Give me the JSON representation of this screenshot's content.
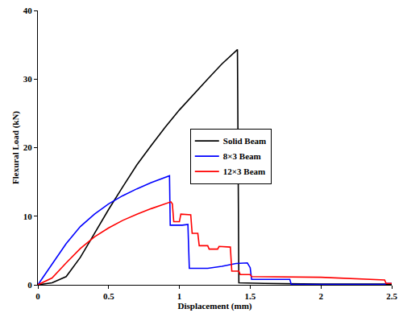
{
  "chart_data": {
    "type": "line",
    "x_label": "Displacement (mm)",
    "y_label": "Flexural Load (kN)",
    "xlim": [
      0,
      2.5
    ],
    "xticks": [
      0,
      0.5,
      1,
      1.5,
      2,
      2.5
    ],
    "ylim": [
      0,
      40
    ],
    "yticks": [
      0,
      10,
      20,
      30,
      40
    ],
    "grid": false,
    "legend": "center",
    "series": [
      {
        "name": "Solid Beam",
        "color": "#000000",
        "x": [
          0,
          0.1,
          0.2,
          0.3,
          0.4,
          0.5,
          0.6,
          0.7,
          0.8,
          0.9,
          1.0,
          1.1,
          1.2,
          1.3,
          1.41,
          1.42,
          1.6,
          2.0,
          2.5
        ],
        "values": [
          0,
          0.3,
          1.2,
          4,
          7.5,
          11,
          14.3,
          17.5,
          20.3,
          23,
          25.5,
          27.8,
          30,
          32.2,
          34.3,
          0.3,
          0.2,
          0.1,
          0.1
        ]
      },
      {
        "name": "8×3 Beam",
        "color": "#0000ff",
        "x": [
          0,
          0.1,
          0.2,
          0.3,
          0.4,
          0.5,
          0.6,
          0.7,
          0.8,
          0.93,
          0.935,
          1.02,
          1.06,
          1.07,
          1.2,
          1.3,
          1.4,
          1.48,
          1.5,
          1.51,
          1.6,
          1.78,
          1.79,
          2.45,
          2.46,
          2.5
        ],
        "values": [
          0,
          3,
          6,
          8.5,
          10.3,
          11.8,
          13,
          14,
          14.9,
          15.9,
          8.7,
          8.7,
          8.8,
          2.4,
          2.4,
          2.7,
          3.1,
          3.2,
          2.5,
          0.8,
          0.8,
          0.8,
          0.05,
          0.05,
          0.2,
          0.2
        ]
      },
      {
        "name": "12×3 Beam",
        "color": "#ff0000",
        "x": [
          0,
          0.1,
          0.2,
          0.3,
          0.4,
          0.5,
          0.6,
          0.7,
          0.8,
          0.94,
          0.95,
          0.96,
          1.0,
          1.01,
          1.08,
          1.09,
          1.13,
          1.14,
          1.2,
          1.21,
          1.27,
          1.28,
          1.36,
          1.37,
          1.42,
          1.43,
          1.5,
          1.51,
          2.0,
          2.45,
          2.46,
          2.5
        ],
        "values": [
          0,
          1,
          3.2,
          5.3,
          7,
          8.3,
          9.4,
          10.3,
          11.1,
          12.1,
          11.8,
          9.2,
          9.2,
          10.3,
          10.2,
          7.5,
          7.5,
          5.7,
          5.7,
          5.2,
          5.2,
          5.6,
          5.5,
          2,
          2,
          1.5,
          1.5,
          1.2,
          1.1,
          0.7,
          0.2,
          0.2
        ]
      }
    ]
  }
}
